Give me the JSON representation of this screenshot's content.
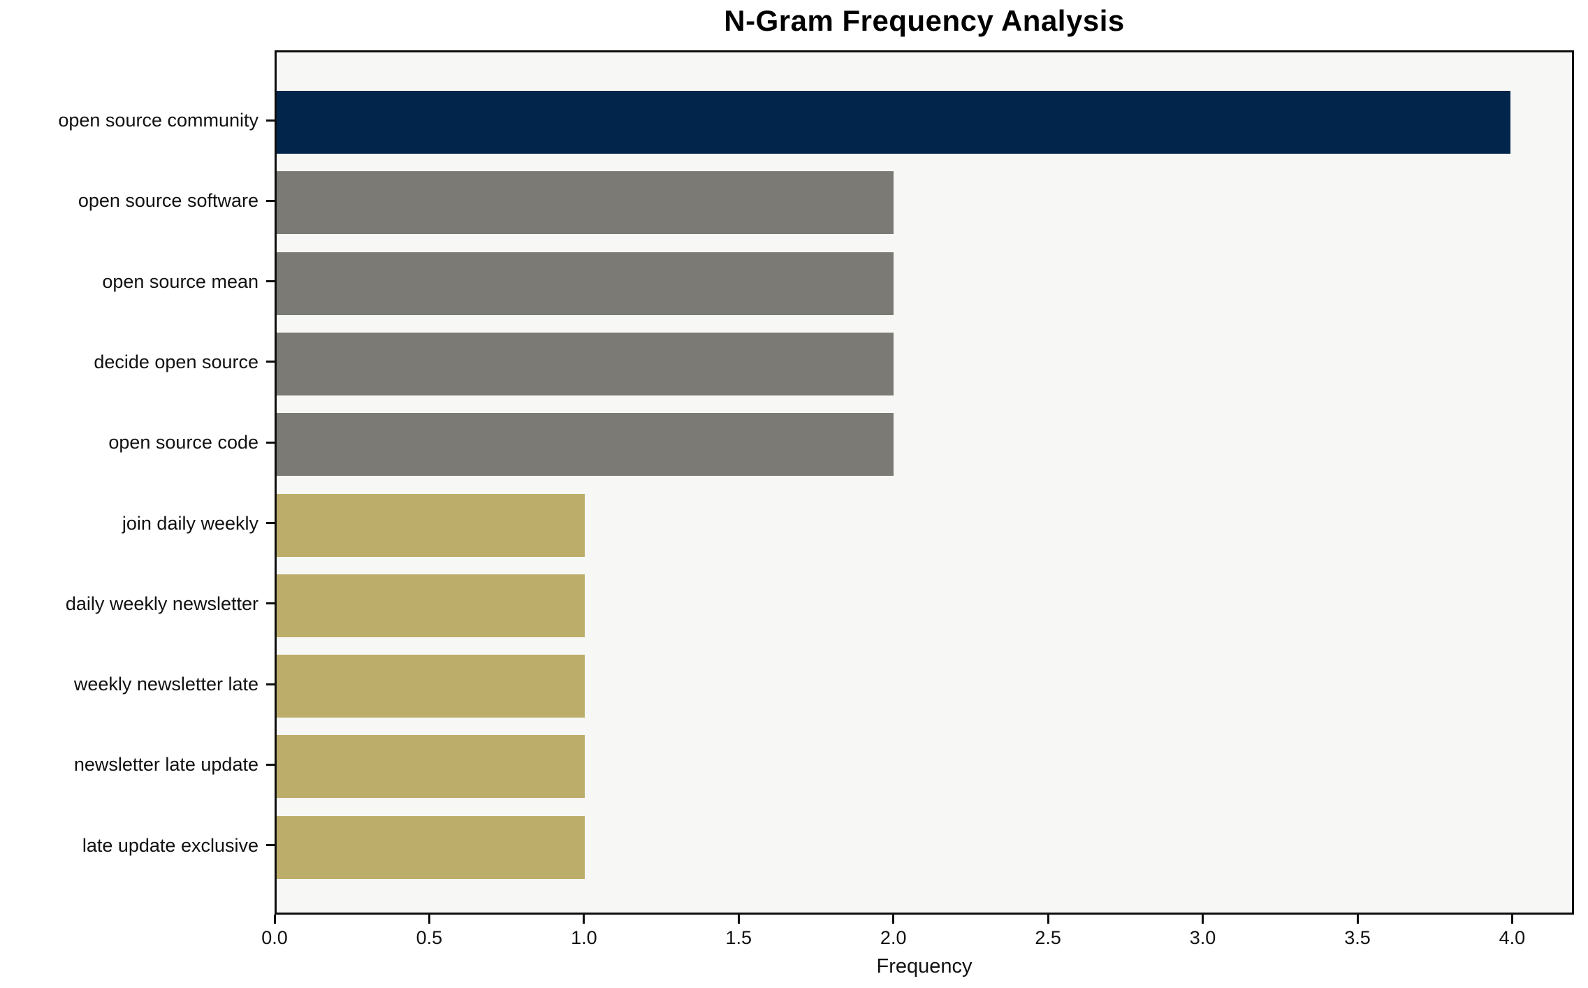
{
  "chart_data": {
    "type": "bar",
    "orientation": "horizontal",
    "title": "N-Gram Frequency Analysis",
    "xlabel": "Frequency",
    "ylabel": "",
    "categories": [
      "open source community",
      "open source software",
      "open source mean",
      "decide open source",
      "open source code",
      "join daily weekly",
      "daily weekly newsletter",
      "weekly newsletter late",
      "newsletter late update",
      "late update exclusive"
    ],
    "values": [
      4,
      2,
      2,
      2,
      2,
      1,
      1,
      1,
      1,
      1
    ],
    "bar_colors": [
      "#02254C",
      "#7B7A75",
      "#7B7A75",
      "#7B7A75",
      "#7B7A75",
      "#BCAD6B",
      "#BCAD6B",
      "#BCAD6B",
      "#BCAD6B",
      "#BCAD6B"
    ],
    "xlim": [
      0,
      4.2
    ],
    "x_ticks": [
      0.0,
      0.5,
      1.0,
      1.5,
      2.0,
      2.5,
      3.0,
      3.5,
      4.0
    ],
    "x_tick_labels": [
      "0.0",
      "0.5",
      "1.0",
      "1.5",
      "2.0",
      "2.5",
      "3.0",
      "3.5",
      "4.0"
    ],
    "grid": false,
    "legend": null,
    "plot_background": "#F7F7F6",
    "figure_background": "#FFFFFF",
    "spine_color": "#0F0F0F"
  }
}
